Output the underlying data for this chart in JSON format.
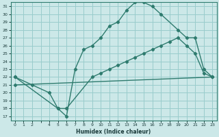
{
  "xlabel": "Humidex (Indice chaleur)",
  "bg_color": "#cce8e8",
  "grid_color": "#99cccc",
  "line_color": "#2e7b6e",
  "xlim": [
    -0.5,
    23.5
  ],
  "ylim": [
    16.5,
    31.5
  ],
  "xticks": [
    0,
    1,
    2,
    3,
    4,
    5,
    6,
    7,
    8,
    9,
    10,
    11,
    12,
    13,
    14,
    15,
    16,
    17,
    18,
    19,
    20,
    21,
    22,
    23
  ],
  "yticks": [
    17,
    18,
    19,
    20,
    21,
    22,
    23,
    24,
    25,
    26,
    27,
    28,
    29,
    30,
    31
  ],
  "line1_x": [
    0,
    2,
    4,
    5,
    6,
    7,
    8,
    9,
    10,
    11,
    12,
    13,
    14,
    15,
    16,
    17,
    19,
    20,
    21,
    22,
    23
  ],
  "line1_y": [
    22,
    21,
    20,
    18,
    17,
    23,
    25.5,
    26,
    27,
    28.5,
    29,
    30.5,
    31.5,
    31.5,
    31,
    30,
    28,
    27,
    27,
    23,
    22
  ],
  "line2_x": [
    0,
    5,
    6,
    9,
    10,
    11,
    12,
    13,
    14,
    15,
    16,
    17,
    18,
    19,
    20,
    21,
    22,
    23
  ],
  "line2_y": [
    22,
    18,
    18,
    22,
    22.5,
    23,
    23.5,
    24,
    24.5,
    25,
    25.5,
    26,
    26.5,
    27,
    26,
    25,
    22.5,
    22
  ],
  "line3_x": [
    0,
    23
  ],
  "line3_y": [
    21,
    22
  ],
  "xtick_labels": [
    "0",
    "1",
    "2",
    "",
    "4",
    "5",
    "6",
    "7",
    "8",
    "9",
    "10",
    "11",
    "12",
    "13",
    "14",
    "15",
    "16",
    "17",
    "18",
    "19",
    "20",
    "21",
    "22",
    "23"
  ]
}
